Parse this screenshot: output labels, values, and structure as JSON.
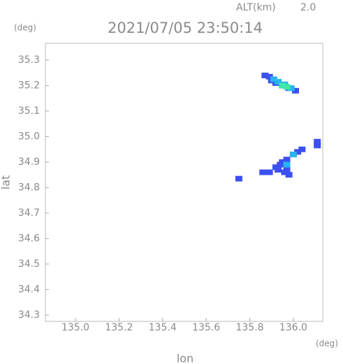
{
  "chart_data": {
    "type": "scatter",
    "title": "2021/07/05 23:50:14",
    "alt_label": "ALT(km)",
    "alt_value": "2.0",
    "y_unit": "(deg)",
    "x_unit": "(deg)",
    "x_label": "lon",
    "y_label": "lat",
    "xlim": [
      134.862,
      136.135
    ],
    "ylim": [
      34.275,
      35.366
    ],
    "xticks": [
      {
        "value": 135.0,
        "label": "135.0"
      },
      135.2,
      135.4,
      135.6,
      135.8,
      {
        "value": 136.0,
        "label": "136.0"
      }
    ],
    "yticks": [
      34.3,
      34.4,
      34.5,
      34.6,
      34.7,
      34.8,
      34.9,
      {
        "value": 35.0,
        "label": "35.0"
      },
      35.1,
      35.2,
      35.3
    ],
    "series": [
      {
        "color": "#3c50f0",
        "x": [
          135.87,
          135.89,
          135.9,
          135.92,
          135.95,
          135.98,
          136.01,
          135.94,
          135.97,
          136.0,
          135.89,
          135.92,
          135.98,
          136.02,
          135.97,
          136.04,
          135.95,
          136.11,
          136.11,
          135.93,
          135.96,
          135.86,
          135.75
        ],
        "values": [
          35.24,
          35.235,
          35.22,
          35.21,
          35.2,
          35.19,
          35.18,
          34.89,
          34.87,
          34.93,
          34.86,
          34.88,
          34.85,
          34.94,
          34.91,
          34.95,
          34.9,
          34.98,
          34.965,
          34.87,
          34.86,
          34.86,
          34.835
        ]
      },
      {
        "color": "#28b4f0",
        "x": [
          135.91,
          135.93,
          135.96,
          135.99,
          135.97,
          136.0
        ],
        "values": [
          35.225,
          35.215,
          35.205,
          35.19,
          34.89,
          34.93
        ]
      },
      {
        "color": "#40e8a8",
        "x": [
          135.95,
          135.97
        ],
        "values": [
          35.2,
          35.195
        ]
      }
    ]
  }
}
